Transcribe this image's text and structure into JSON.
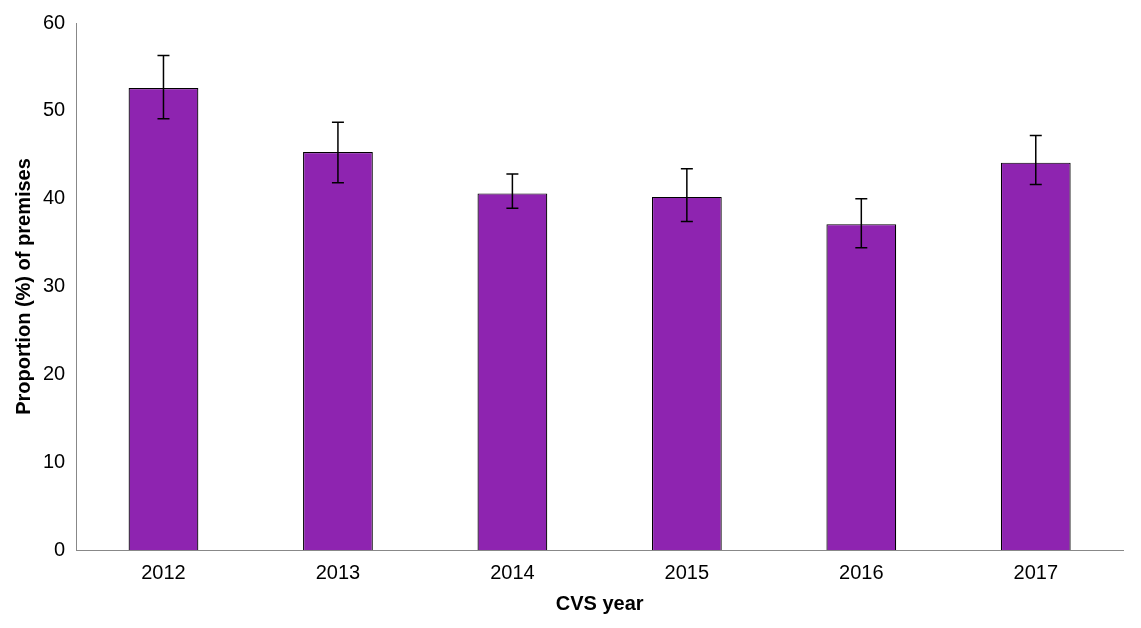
{
  "chart_data": {
    "type": "bar",
    "xlabel": "CVS year",
    "ylabel": "Proportion (%) of premises",
    "categories": [
      "2012",
      "2013",
      "2014",
      "2015",
      "2016",
      "2017"
    ],
    "values": [
      52.6,
      45.3,
      40.6,
      40.2,
      37.1,
      44.1
    ],
    "errors": [
      [
        49.1,
        56.3
      ],
      [
        41.8,
        48.7
      ],
      [
        38.9,
        42.8
      ],
      [
        37.4,
        43.4
      ],
      [
        34.4,
        40.0
      ],
      [
        41.6,
        47.2
      ]
    ],
    "color": "#8e24b0",
    "ylim": [
      0,
      60
    ],
    "yticks": [
      0,
      10,
      20,
      30,
      40,
      50,
      60
    ],
    "grid": false,
    "legend": false
  }
}
